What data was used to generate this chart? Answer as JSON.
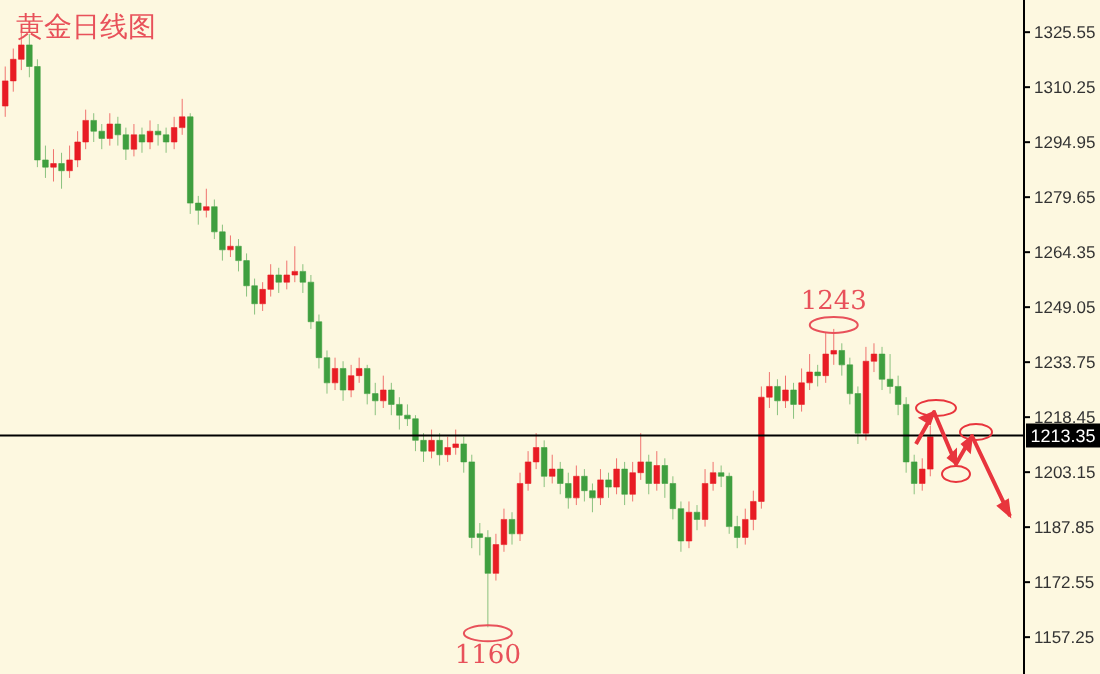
{
  "chart_data": {
    "type": "candlestick",
    "title": "黄金日线图",
    "categories": [
      null,
      null,
      null,
      null,
      null,
      null,
      null,
      null,
      null,
      null,
      null,
      null,
      null,
      null,
      null,
      null,
      null,
      null,
      null,
      null,
      null,
      null,
      null,
      null,
      null,
      null,
      null,
      null,
      null,
      null,
      null,
      null,
      null,
      null,
      null,
      null,
      null,
      null,
      null,
      null,
      null,
      null,
      null,
      null,
      null,
      null,
      null,
      null,
      null,
      null,
      null,
      null,
      null,
      null,
      null,
      null,
      null,
      null,
      null,
      null,
      null,
      null,
      null,
      null,
      null,
      null,
      null,
      null,
      null,
      null,
      null,
      null,
      null,
      null,
      null,
      null,
      null,
      null,
      null,
      null,
      null,
      null,
      null,
      null,
      null,
      null,
      null,
      null,
      null,
      null,
      null,
      null,
      null,
      null,
      null,
      null,
      null,
      null,
      null,
      null,
      null,
      null,
      null,
      null,
      null,
      null,
      null,
      null,
      null,
      null,
      null,
      null,
      null,
      null,
      null,
      null,
      null,
      null,
      null,
      null,
      null,
      null,
      null,
      null,
      null,
      null,
      null
    ],
    "ohlc": [
      [
        1305,
        1316,
        1302,
        1312
      ],
      [
        1312,
        1321,
        1309,
        1318
      ],
      [
        1318,
        1326,
        1315,
        1322
      ],
      [
        1322,
        1325,
        1313,
        1316
      ],
      [
        1316,
        1318,
        1288,
        1290
      ],
      [
        1290,
        1294,
        1285,
        1288
      ],
      [
        1288,
        1293,
        1284,
        1289
      ],
      [
        1289,
        1292,
        1282,
        1287
      ],
      [
        1287,
        1294,
        1285,
        1290
      ],
      [
        1290,
        1298,
        1288,
        1295
      ],
      [
        1295,
        1304,
        1293,
        1301
      ],
      [
        1301,
        1303,
        1295,
        1298
      ],
      [
        1298,
        1300,
        1293,
        1296
      ],
      [
        1296,
        1303,
        1294,
        1300
      ],
      [
        1300,
        1302,
        1294,
        1297
      ],
      [
        1297,
        1299,
        1290,
        1293
      ],
      [
        1293,
        1300,
        1291,
        1297
      ],
      [
        1297,
        1299,
        1292,
        1295
      ],
      [
        1295,
        1301,
        1293,
        1298
      ],
      [
        1298,
        1300,
        1294,
        1297
      ],
      [
        1297,
        1299,
        1292,
        1295
      ],
      [
        1295,
        1302,
        1293,
        1299
      ],
      [
        1299,
        1307,
        1297,
        1302
      ],
      [
        1302,
        1303,
        1275,
        1278
      ],
      [
        1278,
        1280,
        1272,
        1276
      ],
      [
        1276,
        1282,
        1274,
        1277
      ],
      [
        1277,
        1279,
        1268,
        1270
      ],
      [
        1270,
        1272,
        1262,
        1265
      ],
      [
        1265,
        1269,
        1263,
        1266
      ],
      [
        1266,
        1268,
        1259,
        1262
      ],
      [
        1262,
        1264,
        1252,
        1255
      ],
      [
        1255,
        1257,
        1247,
        1250
      ],
      [
        1250,
        1256,
        1248,
        1254
      ],
      [
        1254,
        1261,
        1252,
        1258
      ],
      [
        1258,
        1260,
        1253,
        1256
      ],
      [
        1256,
        1262,
        1254,
        1258
      ],
      [
        1258,
        1266,
        1256,
        1259
      ],
      [
        1259,
        1261,
        1253,
        1256
      ],
      [
        1256,
        1258,
        1243,
        1245
      ],
      [
        1245,
        1247,
        1232,
        1235
      ],
      [
        1235,
        1237,
        1225,
        1228
      ],
      [
        1228,
        1235,
        1226,
        1232
      ],
      [
        1232,
        1234,
        1223,
        1226
      ],
      [
        1226,
        1233,
        1224,
        1230
      ],
      [
        1230,
        1235,
        1228,
        1232
      ],
      [
        1232,
        1233,
        1222,
        1225
      ],
      [
        1225,
        1228,
        1219,
        1223
      ],
      [
        1223,
        1230,
        1221,
        1226
      ],
      [
        1226,
        1228,
        1219,
        1222
      ],
      [
        1222,
        1224,
        1215,
        1219
      ],
      [
        1219,
        1222,
        1216,
        1218
      ],
      [
        1218,
        1219,
        1209,
        1212
      ],
      [
        1212,
        1214,
        1206,
        1209
      ],
      [
        1209,
        1215,
        1207,
        1212
      ],
      [
        1212,
        1214,
        1205,
        1208
      ],
      [
        1208,
        1213,
        1206,
        1210
      ],
      [
        1210,
        1215,
        1208,
        1211
      ],
      [
        1211,
        1213,
        1203,
        1206
      ],
      [
        1206,
        1208,
        1182,
        1185
      ],
      [
        1186,
        1189,
        1180,
        1185
      ],
      [
        1185,
        1187,
        1160,
        1175
      ],
      [
        1175,
        1186,
        1173,
        1183
      ],
      [
        1183,
        1193,
        1181,
        1190
      ],
      [
        1190,
        1192,
        1183,
        1186
      ],
      [
        1186,
        1203,
        1184,
        1200
      ],
      [
        1200,
        1209,
        1198,
        1206
      ],
      [
        1206,
        1214,
        1204,
        1210
      ],
      [
        1210,
        1212,
        1199,
        1202
      ],
      [
        1202,
        1208,
        1200,
        1204
      ],
      [
        1204,
        1206,
        1197,
        1200
      ],
      [
        1200,
        1203,
        1193,
        1196
      ],
      [
        1196,
        1205,
        1194,
        1202
      ],
      [
        1202,
        1204,
        1195,
        1198
      ],
      [
        1198,
        1200,
        1192,
        1196
      ],
      [
        1196,
        1204,
        1194,
        1201
      ],
      [
        1201,
        1203,
        1196,
        1199
      ],
      [
        1199,
        1207,
        1197,
        1204
      ],
      [
        1204,
        1206,
        1194,
        1197
      ],
      [
        1197,
        1206,
        1195,
        1203
      ],
      [
        1203,
        1214,
        1201,
        1206
      ],
      [
        1206,
        1208,
        1197,
        1200
      ],
      [
        1200,
        1209,
        1198,
        1205
      ],
      [
        1205,
        1207,
        1196,
        1200
      ],
      [
        1200,
        1202,
        1190,
        1193
      ],
      [
        1193,
        1195,
        1181,
        1184
      ],
      [
        1184,
        1195,
        1182,
        1192
      ],
      [
        1192,
        1194,
        1187,
        1190
      ],
      [
        1190,
        1204,
        1188,
        1200
      ],
      [
        1200,
        1206,
        1198,
        1203
      ],
      [
        1203,
        1205,
        1199,
        1202
      ],
      [
        1202,
        1203,
        1186,
        1188
      ],
      [
        1188,
        1191,
        1182,
        1185
      ],
      [
        1185,
        1193,
        1183,
        1190
      ],
      [
        1190,
        1198,
        1187,
        1195
      ],
      [
        1195,
        1227,
        1193,
        1224
      ],
      [
        1224,
        1231,
        1221,
        1227
      ],
      [
        1227,
        1229,
        1219,
        1223
      ],
      [
        1223,
        1230,
        1221,
        1226
      ],
      [
        1226,
        1228,
        1218,
        1222
      ],
      [
        1222,
        1232,
        1220,
        1228
      ],
      [
        1228,
        1236,
        1226,
        1231
      ],
      [
        1231,
        1233,
        1227,
        1230
      ],
      [
        1230,
        1242,
        1228,
        1236
      ],
      [
        1236,
        1243,
        1233,
        1237
      ],
      [
        1237,
        1239,
        1230,
        1233
      ],
      [
        1233,
        1235,
        1222,
        1225
      ],
      [
        1225,
        1227,
        1211,
        1214
      ],
      [
        1214,
        1238,
        1212,
        1234
      ],
      [
        1234,
        1239,
        1231,
        1236
      ],
      [
        1236,
        1238,
        1226,
        1229
      ],
      [
        1229,
        1236,
        1225,
        1227
      ],
      [
        1227,
        1230,
        1219,
        1222
      ],
      [
        1222,
        1224,
        1203,
        1206
      ],
      [
        1206,
        1208,
        1197,
        1200
      ],
      [
        1200,
        1207,
        1198,
        1204
      ],
      [
        1204,
        1216,
        1202,
        1213
      ],
      null,
      null,
      null,
      null,
      null,
      null,
      null,
      null,
      null,
      null,
      null
    ],
    "colors": [
      "#e81c24",
      "#e81c24",
      "#e81c24",
      "#3f9f3f",
      "#3f9f3f",
      "#3f9f3f",
      "#e81c24",
      "#3f9f3f",
      "#e81c24",
      "#e81c24",
      "#e81c24",
      "#3f9f3f",
      "#3f9f3f",
      "#e81c24",
      "#3f9f3f",
      "#3f9f3f",
      "#e81c24",
      "#3f9f3f",
      "#e81c24",
      "#3f9f3f",
      "#3f9f3f",
      "#e81c24",
      "#e81c24",
      "#3f9f3f",
      "#3f9f3f",
      "#e81c24",
      "#3f9f3f",
      "#3f9f3f",
      "#e81c24",
      "#3f9f3f",
      "#3f9f3f",
      "#3f9f3f",
      "#e81c24",
      "#e81c24",
      "#3f9f3f",
      "#e81c24",
      "#e81c24",
      "#3f9f3f",
      "#3f9f3f",
      "#3f9f3f",
      "#3f9f3f",
      "#e81c24",
      "#3f9f3f",
      "#e81c24",
      "#e81c24",
      "#3f9f3f",
      "#3f9f3f",
      "#e81c24",
      "#3f9f3f",
      "#3f9f3f",
      "#3f9f3f",
      "#3f9f3f",
      "#3f9f3f",
      "#e81c24",
      "#3f9f3f",
      "#e81c24",
      "#e81c24",
      "#3f9f3f",
      "#3f9f3f",
      "#3f9f3f",
      "#3f9f3f",
      "#e81c24",
      "#e81c24",
      "#3f9f3f",
      "#e81c24",
      "#e81c24",
      "#e81c24",
      "#3f9f3f",
      "#e81c24",
      "#3f9f3f",
      "#3f9f3f",
      "#e81c24",
      "#3f9f3f",
      "#3f9f3f",
      "#e81c24",
      "#3f9f3f",
      "#e81c24",
      "#3f9f3f",
      "#e81c24",
      "#e81c24",
      "#3f9f3f",
      "#e81c24",
      "#3f9f3f",
      "#3f9f3f",
      "#3f9f3f",
      "#e81c24",
      "#3f9f3f",
      "#e81c24",
      "#e81c24",
      "#3f9f3f",
      "#3f9f3f",
      "#3f9f3f",
      "#e81c24",
      "#e81c24",
      "#e81c24",
      "#e81c24",
      "#3f9f3f",
      "#e81c24",
      "#3f9f3f",
      "#e81c24",
      "#e81c24",
      "#3f9f3f",
      "#e81c24",
      "#e81c24",
      "#3f9f3f",
      "#3f9f3f",
      "#3f9f3f",
      "#e81c24",
      "#e81c24",
      "#3f9f3f",
      "#3f9f3f",
      "#3f9f3f",
      "#3f9f3f",
      "#3f9f3f",
      "#e81c24",
      "#e81c24",
      null,
      null,
      null,
      null,
      null,
      null,
      null,
      null,
      null,
      null,
      null
    ],
    "ylim": [
      1147,
      1334.5
    ],
    "yticks": [
      1325.55,
      1310.25,
      1294.95,
      1279.65,
      1264.35,
      1249.05,
      1233.75,
      1218.45,
      1203.15,
      1187.85,
      1172.55,
      1157.25
    ],
    "tick_labels": "y",
    "grid": false,
    "ref_lines": [
      {
        "axis": "y",
        "value": 1213.35,
        "label": "1213.35",
        "color": "#000000"
      }
    ],
    "annotations": [
      "1243",
      "1160"
    ]
  }
}
